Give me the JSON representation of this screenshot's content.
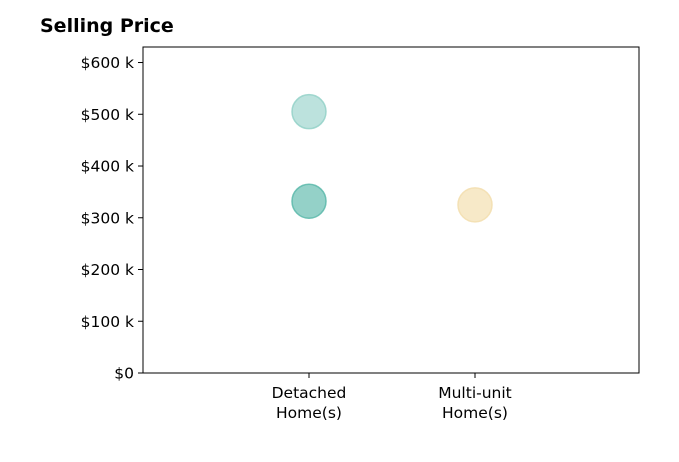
{
  "chart_data": {
    "type": "scatter",
    "title": "Selling Price",
    "xlabel": "",
    "ylabel": "",
    "categories": [
      {
        "line1": "Detached",
        "line2": "Home(s)"
      },
      {
        "line1": "Multi-unit",
        "line2": "Home(s)"
      }
    ],
    "y_ticks": [
      {
        "value": 0,
        "label": "$0"
      },
      {
        "value": 100000,
        "label": "$100 k"
      },
      {
        "value": 200000,
        "label": "$200 k"
      },
      {
        "value": 300000,
        "label": "$300 k"
      },
      {
        "value": 400000,
        "label": "$400 k"
      },
      {
        "value": 500000,
        "label": "$500 k"
      },
      {
        "value": 600000,
        "label": "$600 k"
      }
    ],
    "ylim": [
      0,
      630000
    ],
    "points": [
      {
        "category": "Detached Home(s)",
        "value": 505000,
        "color": "#8fcfc6",
        "opacity": 0.6
      },
      {
        "category": "Detached Home(s)",
        "value": 332000,
        "color": "#5bb8aa",
        "opacity": 0.65
      },
      {
        "category": "Multi-unit Home(s)",
        "value": 325000,
        "color": "#f3dfb0",
        "opacity": 0.7
      }
    ],
    "grid": false,
    "legend": "none"
  }
}
